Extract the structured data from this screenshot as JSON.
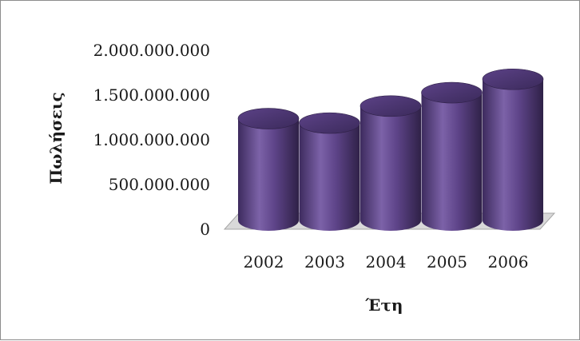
{
  "chart_data": {
    "type": "bar",
    "style": "3d-cylinder",
    "categories": [
      "2002",
      "2003",
      "2004",
      "2005",
      "2006"
    ],
    "values": [
      1290000000,
      1240000000,
      1430000000,
      1580000000,
      1730000000
    ],
    "xlabel": "Έτη",
    "ylabel": "Πωλήσεις",
    "ylim": [
      0,
      2000000000
    ],
    "yticks": [
      0,
      500000000,
      1000000000,
      1500000000,
      2000000000
    ],
    "ytick_labels": [
      "0",
      "500.000.000",
      "1.000.000.000",
      "1.500.000.000",
      "2.000.000.000"
    ],
    "grid": false,
    "legend": "none",
    "colors": {
      "bar": "#5e4489",
      "bar_light": "#8a70b4",
      "bar_dark": "#2f2147",
      "floor": "#d9d9d9",
      "frame": "#8c8c8c"
    }
  }
}
